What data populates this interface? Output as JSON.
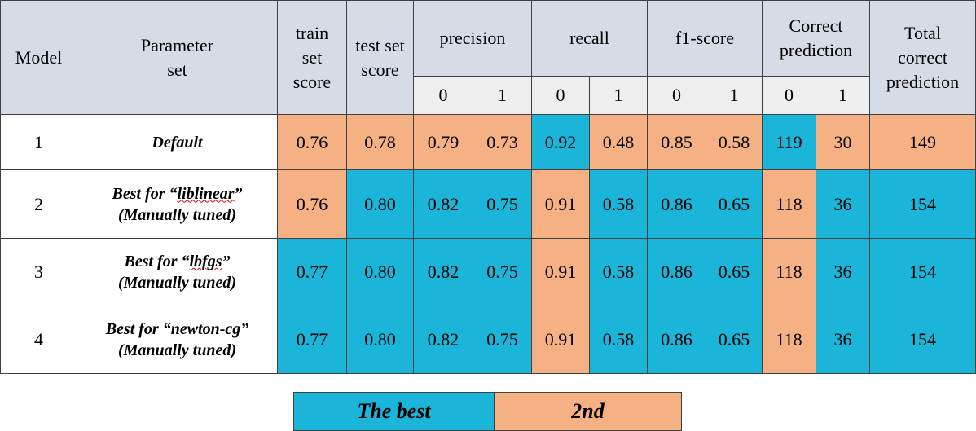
{
  "header": {
    "model": "Model",
    "parameter_set": "Parameter set",
    "train_set_score": "train set score",
    "test_set_score": "test set score",
    "precision": "precision",
    "recall": "recall",
    "f1_score": "f1-score",
    "correct_prediction": "Correct prediction",
    "total_correct_prediction": "Total correct prediction",
    "class_labels": [
      "0",
      "1",
      "0",
      "1",
      "0",
      "1",
      "0",
      "1"
    ]
  },
  "rows": [
    {
      "model": "1",
      "param": {
        "line1_pre": "Default",
        "line1_term": "",
        "line1_post": "",
        "line2": ""
      },
      "cells": [
        "0.76",
        "0.78",
        "0.79",
        "0.73",
        "0.92",
        "0.48",
        "0.85",
        "0.58",
        "119",
        "30",
        "149"
      ],
      "colors": [
        "orange",
        "orange",
        "orange",
        "orange",
        "blue",
        "orange",
        "orange",
        "orange",
        "blue",
        "orange",
        "orange"
      ]
    },
    {
      "model": "2",
      "param": {
        "line1_pre": "Best for “",
        "line1_term": "liblinear",
        "line1_post": "”",
        "line2": "(Manually tuned)"
      },
      "cells": [
        "0.76",
        "0.80",
        "0.82",
        "0.75",
        "0.91",
        "0.58",
        "0.86",
        "0.65",
        "118",
        "36",
        "154"
      ],
      "colors": [
        "orange",
        "blue",
        "blue",
        "blue",
        "orange",
        "blue",
        "blue",
        "blue",
        "orange",
        "blue",
        "blue"
      ]
    },
    {
      "model": "3",
      "param": {
        "line1_pre": "Best for “",
        "line1_term": "lbfgs",
        "line1_post": "”",
        "line2": "(Manually tuned)"
      },
      "cells": [
        "0.77",
        "0.80",
        "0.82",
        "0.75",
        "0.91",
        "0.58",
        "0.86",
        "0.65",
        "118",
        "36",
        "154"
      ],
      "colors": [
        "blue",
        "blue",
        "blue",
        "blue",
        "orange",
        "blue",
        "blue",
        "blue",
        "orange",
        "blue",
        "blue"
      ]
    },
    {
      "model": "4",
      "param": {
        "line1_pre": "Best for “newton-cg”",
        "line1_term": "",
        "line1_post": "",
        "line2": "(Manually tuned)"
      },
      "cells": [
        "0.77",
        "0.80",
        "0.82",
        "0.75",
        "0.91",
        "0.58",
        "0.86",
        "0.65",
        "118",
        "36",
        "154"
      ],
      "colors": [
        "blue",
        "blue",
        "blue",
        "blue",
        "orange",
        "blue",
        "blue",
        "blue",
        "orange",
        "blue",
        "blue"
      ]
    }
  ],
  "legend": {
    "best": "The best",
    "second": "2nd"
  },
  "colors": {
    "best": "#1ab5d8",
    "second": "#f5b183",
    "header": "#d6dce5",
    "subheader": "#eeeeee",
    "border": "#404040"
  }
}
